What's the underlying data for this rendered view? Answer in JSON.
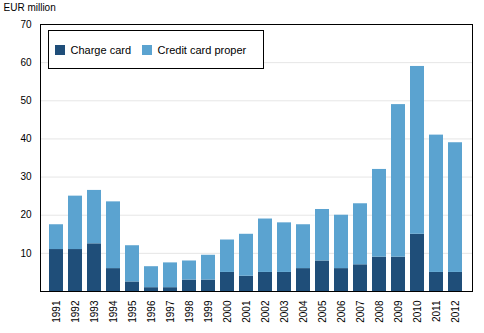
{
  "chart_data": {
    "type": "bar",
    "stacked": true,
    "ylabel": "EUR million",
    "categories": [
      "1991",
      "1992",
      "1993",
      "1994",
      "1995",
      "1996",
      "1997",
      "1998",
      "1999",
      "2000",
      "2001",
      "2002",
      "2003",
      "2004",
      "2005",
      "2006",
      "2007",
      "2008",
      "2009",
      "2010",
      "2011",
      "2012"
    ],
    "series": [
      {
        "name": "Charge card",
        "color": "#1F4E79",
        "values": [
          11,
          11,
          12.5,
          6,
          2.5,
          1,
          1,
          3,
          3,
          5,
          4,
          5,
          5,
          6,
          8,
          6,
          7,
          9,
          9,
          15,
          5,
          5
        ]
      },
      {
        "name": "Credit card proper",
        "color": "#5BA3D0",
        "values": [
          6.5,
          14,
          14,
          17.5,
          9.5,
          5.5,
          6.5,
          5,
          6.5,
          8.5,
          11,
          14,
          13,
          11.5,
          13.5,
          14,
          16,
          23,
          40,
          44,
          36,
          34
        ]
      }
    ],
    "ylim": [
      0,
      70
    ],
    "yticks": [
      10,
      20,
      30,
      40,
      50,
      60,
      70
    ],
    "grid": true,
    "legend": "upper left"
  }
}
